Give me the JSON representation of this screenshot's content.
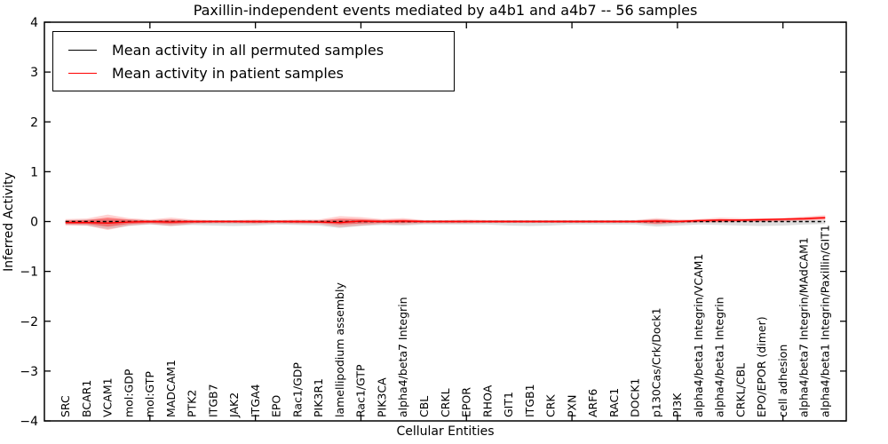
{
  "chart_data": {
    "type": "line",
    "title": "Paxillin-independent events mediated by a4b1 and a4b7 -- 56 samples",
    "xlabel": "Cellular Entities",
    "ylabel": "Inferred Activity",
    "xlim": [
      0,
      38
    ],
    "ylim": [
      -4,
      4
    ],
    "grid": false,
    "legend_position": "upper left",
    "yticks": [
      4,
      3,
      2,
      1,
      0,
      -1,
      -2,
      -3,
      -4
    ],
    "ytick_labels": [
      "4",
      "3",
      "2",
      "1",
      "0",
      "−1",
      "−2",
      "−3",
      "−4"
    ],
    "xtick_positions": [
      5,
      10,
      15,
      20,
      25,
      30,
      35
    ],
    "categories": [
      "SRC",
      "BCAR1",
      "VCAM1",
      "mol:GDP",
      "mol:GTP",
      "MADCAM1",
      "PTK2",
      "ITGB7",
      "JAK2",
      "ITGA4",
      "EPO",
      "Rac1/GDP",
      "PIK3R1",
      "lamellipodium assembly",
      "Rac1/GTP",
      "PIK3CA",
      "alpha4/beta7 Integrin",
      "CBL",
      "CRKL",
      "EPOR",
      "RHOA",
      "GIT1",
      "ITGB1",
      "CRK",
      "PXN",
      "ARF6",
      "RAC1",
      "DOCK1",
      "p130Cas/Crk/Dock1",
      "PI3K",
      "alpha4/beta1 Integrin/VCAM1",
      "alpha4/beta1 Integrin",
      "CRKL/CBL",
      "EPO/EPOR (dimer)",
      "cell adhesion",
      "alpha4/beta7 Integrin/MAdCAM1",
      "alpha4/beta1 Integrin/Paxillin/GIT1"
    ],
    "series": [
      {
        "name": "Mean activity in all permuted samples",
        "color": "#000000",
        "style": "dashed",
        "values": [
          0,
          0,
          0,
          0,
          0,
          0,
          0,
          0,
          0,
          0,
          0,
          0,
          0,
          0,
          0,
          0,
          0,
          0,
          0,
          0,
          0,
          0,
          0,
          0,
          0,
          0,
          0,
          0,
          0,
          0,
          0,
          0,
          0,
          0,
          0,
          0,
          0
        ]
      },
      {
        "name": "Mean activity in patient samples",
        "color": "#ff0000",
        "style": "solid",
        "values": [
          -0.02,
          -0.02,
          -0.03,
          -0.01,
          0,
          -0.01,
          0,
          0,
          0,
          0,
          0,
          0,
          -0.01,
          -0.02,
          0.01,
          0,
          0.01,
          0,
          0,
          0,
          0,
          0,
          0,
          0,
          0,
          0,
          0,
          0,
          0.01,
          0,
          0.02,
          0.03,
          0.03,
          0.04,
          0.05,
          0.06,
          0.08
        ]
      }
    ],
    "bands": [
      {
        "name": "permuted-samples-spread",
        "color": "#999999",
        "opacity": 0.32,
        "upper": [
          0.03,
          0.04,
          0.05,
          0.04,
          0.03,
          0.04,
          0.03,
          0.03,
          0.03,
          0.03,
          0.03,
          0.03,
          0.03,
          0.04,
          0.04,
          0.03,
          0.03,
          0.03,
          0.03,
          0.03,
          0.03,
          0.03,
          0.03,
          0.03,
          0.03,
          0.03,
          0.03,
          0.03,
          0.04,
          0.03,
          0.03,
          0.03,
          0.03,
          0.03,
          0.03,
          0.03,
          0.03
        ],
        "lower": [
          -0.06,
          -0.08,
          -0.15,
          -0.09,
          -0.06,
          -0.09,
          -0.07,
          -0.08,
          -0.09,
          -0.08,
          -0.06,
          -0.07,
          -0.08,
          -0.13,
          -0.09,
          -0.07,
          -0.08,
          -0.06,
          -0.06,
          -0.06,
          -0.06,
          -0.08,
          -0.09,
          -0.08,
          -0.06,
          -0.06,
          -0.06,
          -0.06,
          -0.1,
          -0.08,
          -0.06,
          -0.07,
          -0.08,
          -0.09,
          -0.08,
          -0.06,
          -0.05
        ]
      },
      {
        "name": "patient-samples-spread-outer",
        "color": "#ff0000",
        "opacity": 0.18,
        "upper": [
          0.05,
          0.06,
          0.14,
          0.07,
          0.04,
          0.08,
          0.04,
          0.03,
          0.03,
          0.04,
          0.03,
          0.04,
          0.04,
          0.11,
          0.09,
          0.05,
          0.07,
          0.03,
          0.03,
          0.04,
          0.03,
          0.03,
          0.03,
          0.03,
          0.03,
          0.03,
          0.03,
          0.03,
          0.07,
          0.04,
          0.05,
          0.08,
          0.07,
          0.06,
          0.07,
          0.1,
          0.13
        ],
        "lower": [
          -0.08,
          -0.08,
          -0.17,
          -0.08,
          -0.05,
          -0.09,
          -0.05,
          -0.04,
          -0.04,
          -0.05,
          -0.04,
          -0.05,
          -0.05,
          -0.11,
          -0.08,
          -0.05,
          -0.06,
          -0.04,
          -0.04,
          -0.04,
          -0.03,
          -0.03,
          -0.03,
          -0.03,
          -0.03,
          -0.03,
          -0.03,
          -0.03,
          -0.06,
          -0.04,
          -0.02,
          -0.02,
          -0.01,
          -0.01,
          0.0,
          0.02,
          0.03
        ]
      },
      {
        "name": "patient-samples-spread-inner",
        "color": "#ff0000",
        "opacity": 0.38,
        "upper": [
          0.02,
          0.03,
          0.08,
          0.04,
          0.02,
          0.04,
          0.02,
          0.02,
          0.02,
          0.02,
          0.02,
          0.02,
          0.02,
          0.06,
          0.05,
          0.03,
          0.04,
          0.02,
          0.02,
          0.02,
          0.02,
          0.02,
          0.02,
          0.02,
          0.02,
          0.02,
          0.02,
          0.02,
          0.04,
          0.02,
          0.03,
          0.05,
          0.04,
          0.04,
          0.04,
          0.07,
          0.09
        ],
        "lower": [
          -0.05,
          -0.05,
          -0.1,
          -0.05,
          -0.03,
          -0.05,
          -0.03,
          -0.02,
          -0.02,
          -0.03,
          -0.02,
          -0.03,
          -0.03,
          -0.06,
          -0.04,
          -0.03,
          -0.03,
          -0.02,
          -0.02,
          -0.02,
          -0.02,
          -0.02,
          -0.02,
          -0.02,
          -0.02,
          -0.02,
          -0.02,
          -0.02,
          -0.04,
          -0.02,
          -0.01,
          0.0,
          0.01,
          0.01,
          0.02,
          0.03,
          0.05
        ]
      }
    ]
  }
}
